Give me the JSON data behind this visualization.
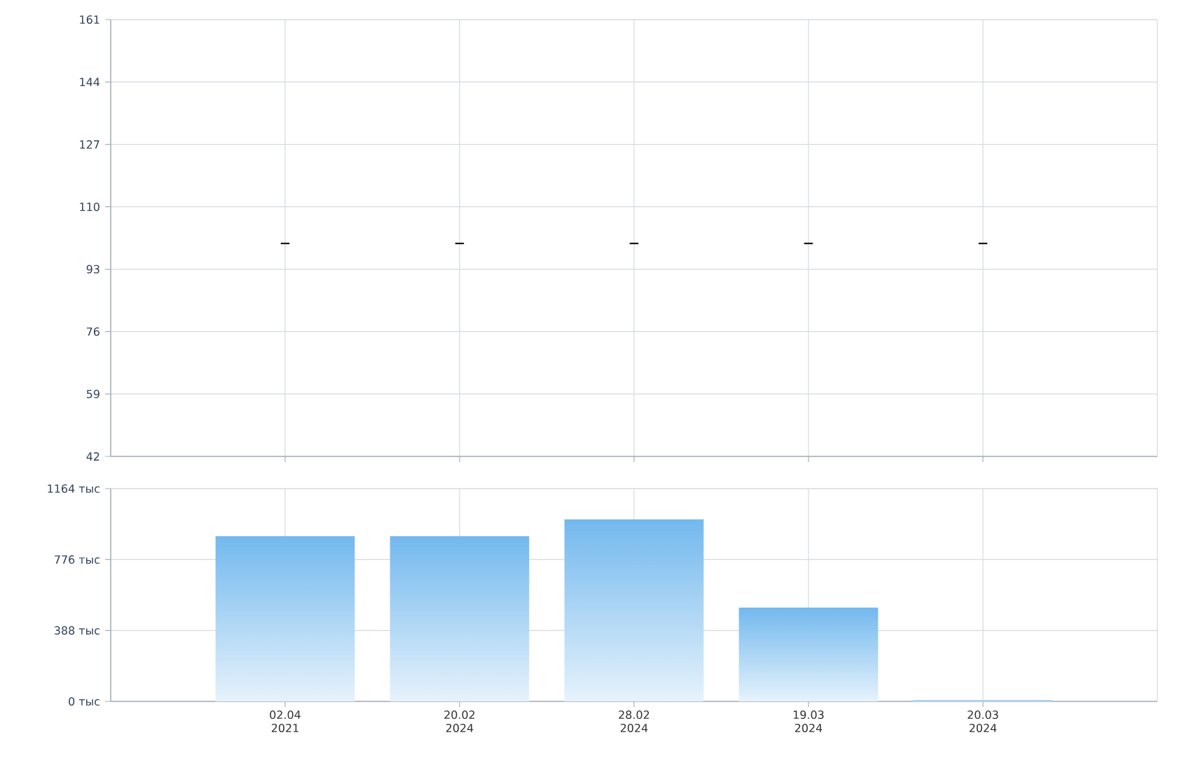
{
  "chart_data": [
    {
      "type": "candlestick",
      "categories": [
        null,
        null,
        null,
        null,
        null
      ],
      "ohlc": [
        [
          100,
          100,
          100,
          100
        ],
        [
          100,
          100,
          100,
          100
        ],
        [
          100,
          100,
          100,
          100
        ],
        [
          100,
          100,
          100,
          100
        ],
        [
          100,
          100,
          100,
          100
        ]
      ],
      "color": "#000000",
      "ylim": [
        42,
        161
      ],
      "yticks": [
        42,
        59,
        76,
        93,
        110,
        127,
        144,
        161
      ],
      "grid": true,
      "tick_labels": "y"
    },
    {
      "type": "bar",
      "categories": [
        "02.04 2021",
        "20.02 2024",
        "28.02 2024",
        "19.03 2024",
        "20.03 2024"
      ],
      "values": [
        904,
        904,
        996,
        513,
        8
      ],
      "color": "#72b8ee",
      "ylim": [
        0,
        1164
      ],
      "yticks": [
        {
          "value": 0,
          "label": "0 тыс"
        },
        {
          "value": 388,
          "label": "388 тыс"
        },
        {
          "value": 776,
          "label": "776 тыс"
        },
        {
          "value": 1164,
          "label": "1164 тыс"
        }
      ],
      "grid": true
    }
  ]
}
